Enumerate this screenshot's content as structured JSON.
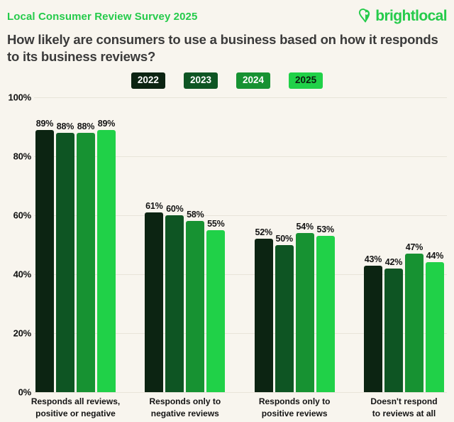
{
  "header": {
    "title": "Local Consumer Review Survey 2025",
    "logo_text": "brightlocal"
  },
  "question": {
    "line1": "How likely are consumers to use a business based on how it responds",
    "line2": "to its business reviews?"
  },
  "colors": {
    "background": "#f8f5ee",
    "accent_green": "#25cb4b",
    "question_text": "#3a3a3a",
    "label_text": "#141414",
    "gridline": "#e8e4d9"
  },
  "legend": {
    "items": [
      {
        "label": "2022",
        "color": "#0c2412",
        "text_color": "#ffffff"
      },
      {
        "label": "2023",
        "color": "#0e5523",
        "text_color": "#ffffff"
      },
      {
        "label": "2024",
        "color": "#179232",
        "text_color": "#ffffff"
      },
      {
        "label": "2025",
        "color": "#20d148",
        "text_color": "#0b1c0f"
      }
    ]
  },
  "chart_data": {
    "type": "bar",
    "title": "Local Consumer Review Survey 2025",
    "categories": [
      [
        "Responds all reviews,",
        "positive or negative"
      ],
      [
        "Responds only to",
        "negative reviews"
      ],
      [
        "Responds only to",
        "positive reviews"
      ],
      [
        "Doesn't respond",
        "to reviews at all"
      ]
    ],
    "series": [
      {
        "name": "2022",
        "color": "#0c2412",
        "values": [
          89,
          61,
          52,
          43
        ]
      },
      {
        "name": "2023",
        "color": "#0e5523",
        "values": [
          88,
          60,
          50,
          42
        ]
      },
      {
        "name": "2024",
        "color": "#179232",
        "values": [
          88,
          58,
          54,
          47
        ]
      },
      {
        "name": "2025",
        "color": "#20d148",
        "values": [
          89,
          55,
          53,
          44
        ]
      }
    ],
    "value_suffix": "%",
    "xlabel": "",
    "ylabel": "",
    "ylim": [
      0,
      100
    ],
    "yticks": [
      0,
      20,
      40,
      60,
      80,
      100
    ],
    "ytick_suffix": "%",
    "grid": true,
    "legend_position": "top"
  }
}
